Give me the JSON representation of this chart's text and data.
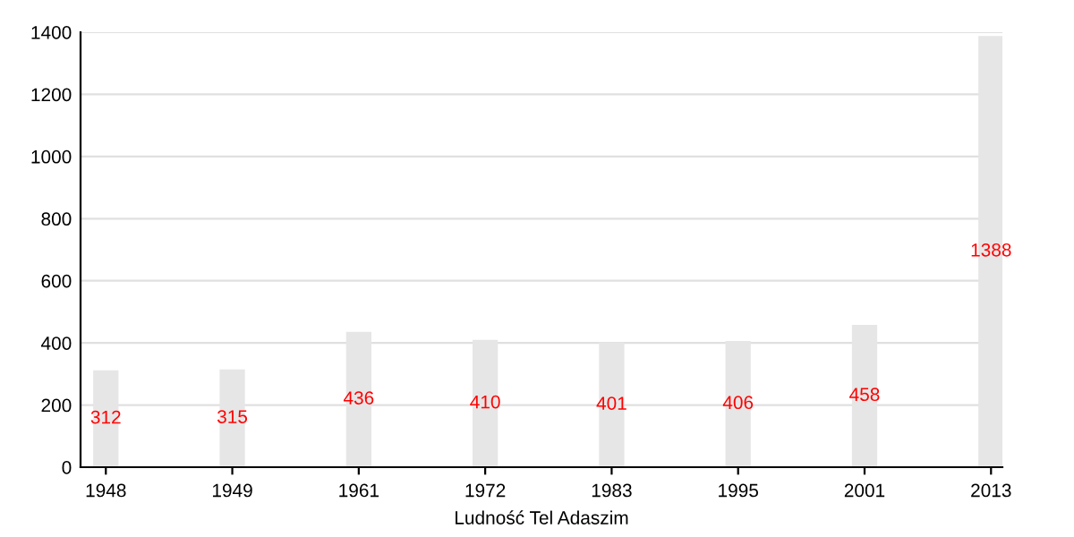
{
  "chart_data": {
    "type": "bar",
    "xlabel": "Ludność Tel Adaszim",
    "categories": [
      "1948",
      "1949",
      "1961",
      "1972",
      "1983",
      "1995",
      "2001",
      "2013"
    ],
    "values": [
      312,
      315,
      436,
      410,
      401,
      406,
      458,
      1388
    ],
    "color": "#e6e6e6",
    "ylim": [
      0,
      1400
    ],
    "yticks": [
      0,
      200,
      400,
      600,
      800,
      1000,
      1200,
      1400
    ],
    "grid": "y",
    "data_labels": true,
    "legend": false
  }
}
